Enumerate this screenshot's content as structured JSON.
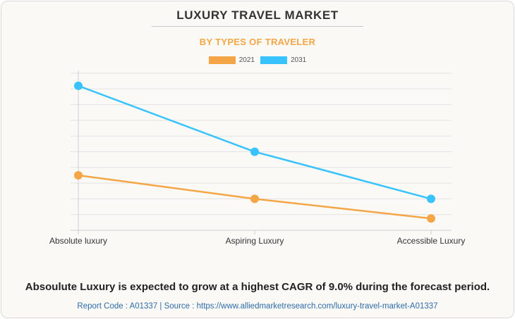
{
  "chart_data": {
    "type": "line",
    "title": "LUXURY TRAVEL MARKET",
    "subtitle": "BY TYPES OF TRAVELER",
    "categories": [
      "Absolute luxury",
      "Aspiring Luxury",
      "Accessible Luxury"
    ],
    "series": [
      {
        "name": "2021",
        "values": [
          35,
          20,
          7.5
        ],
        "color": "#f4a646"
      },
      {
        "name": "2031",
        "values": [
          92,
          50,
          20
        ],
        "color": "#38c3ff"
      }
    ],
    "ylim": [
      0,
      100
    ],
    "grid": true,
    "legend": "top-center"
  },
  "colors": {
    "subtitle": "#f4a646",
    "grid": "#e3e3e3",
    "axis": "#cfcfcf"
  },
  "footnote": "Absoulute Luxury is expected to grow at a highest CAGR of 9.0% during the forecast period.",
  "source": "Report Code : A01337  |  Source : https://www.alliedmarketresearch.com/luxury-travel-market-A01337"
}
